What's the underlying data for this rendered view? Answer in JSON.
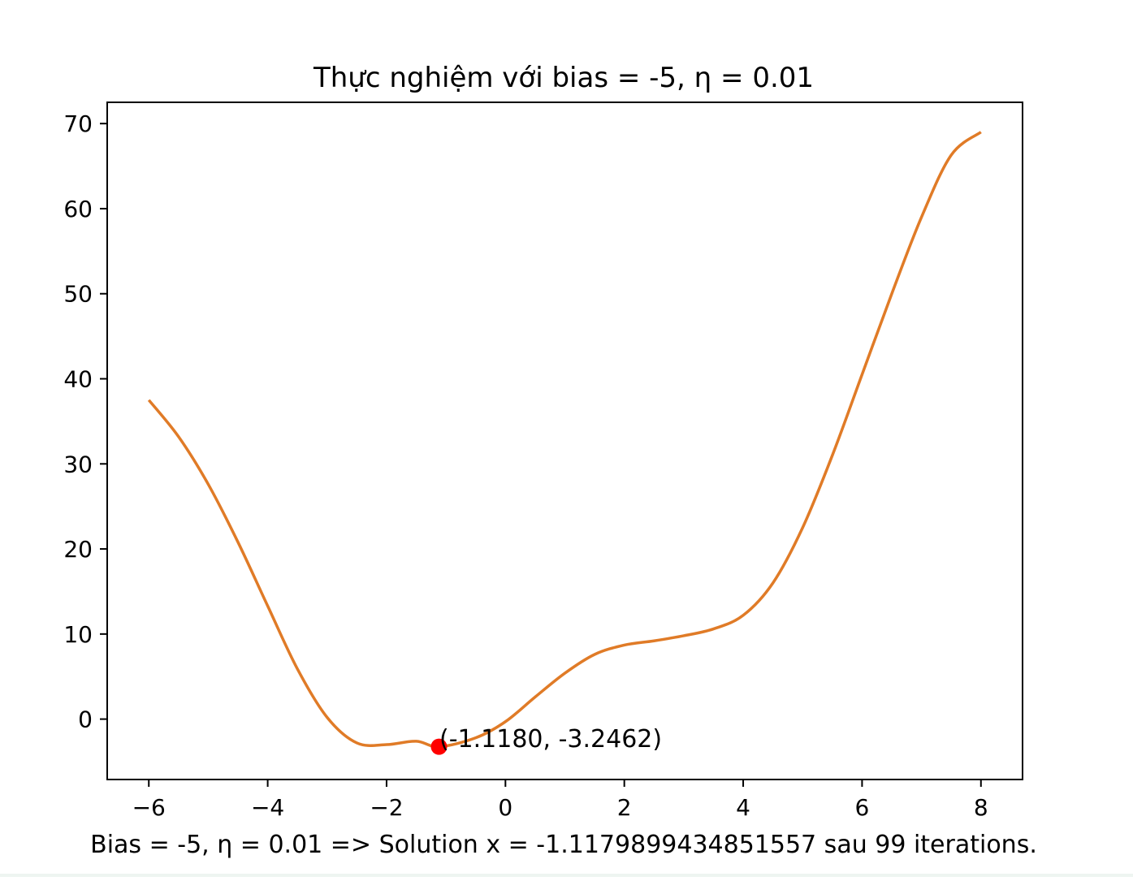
{
  "chart_data": {
    "type": "line",
    "title": "Thực nghiệm với bias = -5, η = 0.01",
    "xlabel": "",
    "ylabel": "",
    "xlim": [
      -6.7,
      8.7
    ],
    "ylim": [
      -7.1,
      72.5
    ],
    "x_ticks": [
      -6,
      -4,
      -2,
      0,
      2,
      4,
      6,
      8
    ],
    "x_tick_labels": [
      "−6",
      "−4",
      "−2",
      "0",
      "2",
      "4",
      "6",
      "8"
    ],
    "y_ticks": [
      0,
      10,
      20,
      30,
      40,
      50,
      60,
      70
    ],
    "y_tick_labels": [
      "0",
      "10",
      "20",
      "30",
      "40",
      "50",
      "60",
      "70"
    ],
    "grid": false,
    "series": [
      {
        "color": "#e07b27",
        "x": [
          -6,
          -5.5,
          -5,
          -4.5,
          -4,
          -3.5,
          -3,
          -2.5,
          -2,
          -1.5,
          -1.118,
          -0.5,
          0,
          0.5,
          1,
          1.5,
          2,
          2.5,
          3,
          3.5,
          4,
          4.5,
          5,
          5.5,
          6,
          6.5,
          7,
          7.5,
          8
        ],
        "y": [
          37.5,
          33.2,
          27.6,
          20.8,
          13.3,
          5.9,
          0.2,
          -2.8,
          -3.0,
          -2.6,
          -3.2462,
          -2.2,
          -0.3,
          2.6,
          5.4,
          7.6,
          8.7,
          9.2,
          9.8,
          10.6,
          12.2,
          16.0,
          22.5,
          31.0,
          40.5,
          50.0,
          59.0,
          66.3,
          69.0
        ]
      }
    ],
    "point": {
      "x": -1.118,
      "y": -3.2462,
      "color": "#ff0000"
    },
    "annotation": "(-1.1180, -3.2462)",
    "caption": "Bias = -5, η = 0.01 => Solution x = -1.1179899434851557 sau 99 iterations."
  }
}
